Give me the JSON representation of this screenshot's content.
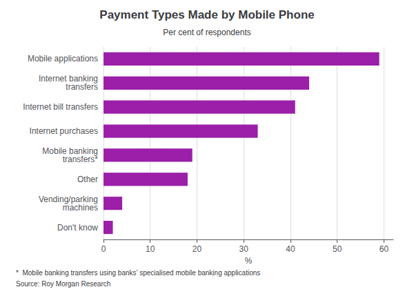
{
  "chart_data": {
    "type": "bar",
    "orientation": "horizontal",
    "title": "Payment Types Made by Mobile Phone",
    "subtitle": "Per cent of respondents",
    "categories": [
      "Mobile applications",
      "Internet banking\ntransfers",
      "Internet bill transfers",
      "Internet purchases",
      "Mobile banking\ntransfers*",
      "Other",
      "Vending/parking\nmachines",
      "Don't know"
    ],
    "values": [
      59,
      44,
      41,
      33,
      19,
      18,
      4,
      2
    ],
    "color": "#9B1FA8",
    "xlabel": "%",
    "xlim": [
      0,
      62
    ],
    "xticks": [
      0,
      10,
      20,
      30,
      40,
      50,
      60
    ],
    "grid": true,
    "annotations": [
      "*  Mobile banking transfers using banks’ specialised mobile banking applications",
      "Source: Roy Morgan Research"
    ]
  }
}
